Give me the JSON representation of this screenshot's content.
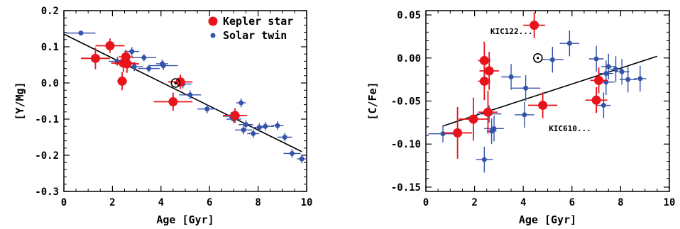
{
  "colors": {
    "kepler": "#e8141c",
    "twin": "#3553a8",
    "fit": "#000000",
    "axes": "#000000"
  },
  "chart_data": [
    {
      "type": "scatter",
      "xlabel": "Age [Gyr]",
      "ylabel": "[Y/Mg]",
      "xlim": [
        0,
        10
      ],
      "ylim": [
        -0.3,
        0.2
      ],
      "xticks": [
        0,
        2,
        4,
        6,
        8,
        10
      ],
      "yticks": [
        -0.3,
        -0.2,
        -0.1,
        0.0,
        0.1,
        0.2
      ],
      "xtick_labels": [
        "0",
        "2",
        "4",
        "6",
        "8",
        "10"
      ],
      "ytick_labels": [
        "-0.3",
        "-0.2",
        "-0.1",
        "0.0",
        "0.1",
        "0.2"
      ],
      "legend": {
        "placement": "top-right",
        "entries": [
          {
            "label": "Kepler star",
            "series": "kepler"
          },
          {
            "label": "Solar twin",
            "series": "twin"
          }
        ]
      },
      "fit_line": {
        "x": [
          0,
          9.8
        ],
        "y": [
          0.135,
          -0.19
        ]
      },
      "sun": {
        "x": 4.6,
        "y": 0.0
      },
      "series": [
        {
          "name": "Solar twin",
          "key": "twin",
          "points": [
            {
              "x": 0.7,
              "y": 0.138,
              "xerr": 0.6,
              "yerr": 0.006
            },
            {
              "x": 2.2,
              "y": 0.06,
              "xerr": 0.35,
              "yerr": 0.012
            },
            {
              "x": 2.8,
              "y": 0.087,
              "xerr": 0.3,
              "yerr": 0.012
            },
            {
              "x": 3.3,
              "y": 0.07,
              "xerr": 0.5,
              "yerr": 0.01
            },
            {
              "x": 2.9,
              "y": 0.045,
              "xerr": 0.35,
              "yerr": 0.012
            },
            {
              "x": 3.5,
              "y": 0.04,
              "xerr": 0.45,
              "yerr": 0.01
            },
            {
              "x": 4.05,
              "y": 0.053,
              "xerr": 0.25,
              "yerr": 0.012
            },
            {
              "x": 4.1,
              "y": 0.048,
              "xerr": 0.6,
              "yerr": 0.012
            },
            {
              "x": 4.9,
              "y": -0.003,
              "xerr": 0.35,
              "yerr": 0.012
            },
            {
              "x": 5.2,
              "y": -0.033,
              "xerr": 0.45,
              "yerr": 0.012
            },
            {
              "x": 5.9,
              "y": -0.072,
              "xerr": 0.4,
              "yerr": 0.012
            },
            {
              "x": 6.9,
              "y": -0.092,
              "xerr": 0.35,
              "yerr": 0.012
            },
            {
              "x": 7.0,
              "y": -0.1,
              "xerr": 0.3,
              "yerr": 0.012
            },
            {
              "x": 7.3,
              "y": -0.055,
              "xerr": 0.2,
              "yerr": 0.012
            },
            {
              "x": 7.4,
              "y": -0.13,
              "xerr": 0.35,
              "yerr": 0.012
            },
            {
              "x": 7.5,
              "y": -0.115,
              "xerr": 0.3,
              "yerr": 0.012
            },
            {
              "x": 7.8,
              "y": -0.14,
              "xerr": 0.25,
              "yerr": 0.012
            },
            {
              "x": 8.05,
              "y": -0.123,
              "xerr": 0.3,
              "yerr": 0.012
            },
            {
              "x": 8.3,
              "y": -0.12,
              "xerr": 0.35,
              "yerr": 0.012
            },
            {
              "x": 8.8,
              "y": -0.118,
              "xerr": 0.25,
              "yerr": 0.012
            },
            {
              "x": 9.1,
              "y": -0.15,
              "xerr": 0.3,
              "yerr": 0.012
            },
            {
              "x": 9.4,
              "y": -0.195,
              "xerr": 0.35,
              "yerr": 0.012
            },
            {
              "x": 9.8,
              "y": -0.21,
              "xerr": 0.2,
              "yerr": 0.012
            }
          ]
        },
        {
          "name": "Kepler star",
          "key": "kepler",
          "points": [
            {
              "x": 1.3,
              "y": 0.068,
              "xerr": 0.6,
              "yerr": 0.03
            },
            {
              "x": 1.9,
              "y": 0.103,
              "xerr": 0.6,
              "yerr": 0.02
            },
            {
              "x": 2.4,
              "y": 0.005,
              "xerr": 0.2,
              "yerr": 0.025
            },
            {
              "x": 2.45,
              "y": 0.055,
              "xerr": 0.5,
              "yerr": 0.025
            },
            {
              "x": 2.55,
              "y": 0.072,
              "xerr": 0.3,
              "yerr": 0.02
            },
            {
              "x": 2.6,
              "y": 0.053,
              "xerr": 0.5,
              "yerr": 0.025
            },
            {
              "x": 4.5,
              "y": -0.052,
              "xerr": 0.8,
              "yerr": 0.025
            },
            {
              "x": 4.8,
              "y": 0.003,
              "xerr": 0.5,
              "yerr": 0.02
            },
            {
              "x": 7.05,
              "y": -0.09,
              "xerr": 0.5,
              "yerr": 0.02
            }
          ]
        }
      ]
    },
    {
      "type": "scatter",
      "xlabel": "Age [Gyr]",
      "ylabel": "[C/Fe]",
      "xlim": [
        0,
        10
      ],
      "ylim": [
        -0.155,
        0.055
      ],
      "xticks": [
        0,
        2,
        4,
        6,
        8,
        10
      ],
      "yticks": [
        -0.15,
        -0.1,
        -0.05,
        0.0,
        0.05
      ],
      "xtick_labels": [
        "0",
        "2",
        "4",
        "6",
        "8",
        "10"
      ],
      "ytick_labels": [
        "-0.15",
        "-0.10",
        "-0.05",
        "0.00",
        "0.05"
      ],
      "fit_line": {
        "x": [
          0.7,
          9.5
        ],
        "y": [
          -0.079,
          0.002
        ]
      },
      "sun": {
        "x": 4.6,
        "y": 0.0
      },
      "annotations": [
        {
          "text": "KIC122...",
          "x": 2.65,
          "y": 0.028
        },
        {
          "text": "KIC610...",
          "x": 5.05,
          "y": -0.085
        }
      ],
      "series": [
        {
          "name": "Solar twin",
          "key": "twin",
          "points": [
            {
              "x": 0.7,
              "y": -0.088,
              "xerr": 0.6,
              "yerr": 0.01
            },
            {
              "x": 2.4,
              "y": -0.118,
              "xerr": 0.35,
              "yerr": 0.015
            },
            {
              "x": 2.6,
              "y": -0.065,
              "xerr": 0.5,
              "yerr": 0.01
            },
            {
              "x": 2.7,
              "y": -0.085,
              "xerr": 0.2,
              "yerr": 0.015
            },
            {
              "x": 2.8,
              "y": -0.082,
              "xerr": 0.4,
              "yerr": 0.015
            },
            {
              "x": 3.5,
              "y": -0.022,
              "xerr": 0.4,
              "yerr": 0.015
            },
            {
              "x": 4.05,
              "y": -0.066,
              "xerr": 0.4,
              "yerr": 0.015
            },
            {
              "x": 4.1,
              "y": -0.035,
              "xerr": 0.6,
              "yerr": 0.015
            },
            {
              "x": 5.2,
              "y": -0.002,
              "xerr": 0.45,
              "yerr": 0.015
            },
            {
              "x": 5.9,
              "y": 0.017,
              "xerr": 0.4,
              "yerr": 0.015
            },
            {
              "x": 7.0,
              "y": -0.001,
              "xerr": 0.3,
              "yerr": 0.015
            },
            {
              "x": 7.3,
              "y": -0.055,
              "xerr": 0.3,
              "yerr": 0.015
            },
            {
              "x": 7.4,
              "y": -0.018,
              "xerr": 0.3,
              "yerr": 0.015
            },
            {
              "x": 7.4,
              "y": -0.028,
              "xerr": 0.35,
              "yerr": 0.015
            },
            {
              "x": 7.5,
              "y": -0.01,
              "xerr": 0.3,
              "yerr": 0.015
            },
            {
              "x": 7.8,
              "y": -0.013,
              "xerr": 0.25,
              "yerr": 0.015
            },
            {
              "x": 8.05,
              "y": -0.016,
              "xerr": 0.3,
              "yerr": 0.015
            },
            {
              "x": 8.3,
              "y": -0.025,
              "xerr": 0.35,
              "yerr": 0.015
            },
            {
              "x": 8.8,
              "y": -0.024,
              "xerr": 0.25,
              "yerr": 0.015
            }
          ]
        },
        {
          "name": "Kepler star",
          "key": "kepler",
          "points": [
            {
              "x": 1.3,
              "y": -0.087,
              "xerr": 0.6,
              "yerr": 0.03
            },
            {
              "x": 1.95,
              "y": -0.071,
              "xerr": 0.6,
              "yerr": 0.025
            },
            {
              "x": 2.4,
              "y": -0.003,
              "xerr": 0.25,
              "yerr": 0.022
            },
            {
              "x": 2.4,
              "y": -0.027,
              "xerr": 0.25,
              "yerr": 0.022
            },
            {
              "x": 2.55,
              "y": -0.063,
              "xerr": 0.4,
              "yerr": 0.025
            },
            {
              "x": 2.6,
              "y": -0.015,
              "xerr": 0.4,
              "yerr": 0.022
            },
            {
              "x": 4.45,
              "y": 0.038,
              "xerr": 0.45,
              "yerr": 0.015
            },
            {
              "x": 4.8,
              "y": -0.055,
              "xerr": 0.6,
              "yerr": 0.015
            },
            {
              "x": 7.0,
              "y": -0.049,
              "xerr": 0.45,
              "yerr": 0.015
            },
            {
              "x": 7.1,
              "y": -0.026,
              "xerr": 0.35,
              "yerr": 0.015
            }
          ]
        }
      ]
    }
  ]
}
